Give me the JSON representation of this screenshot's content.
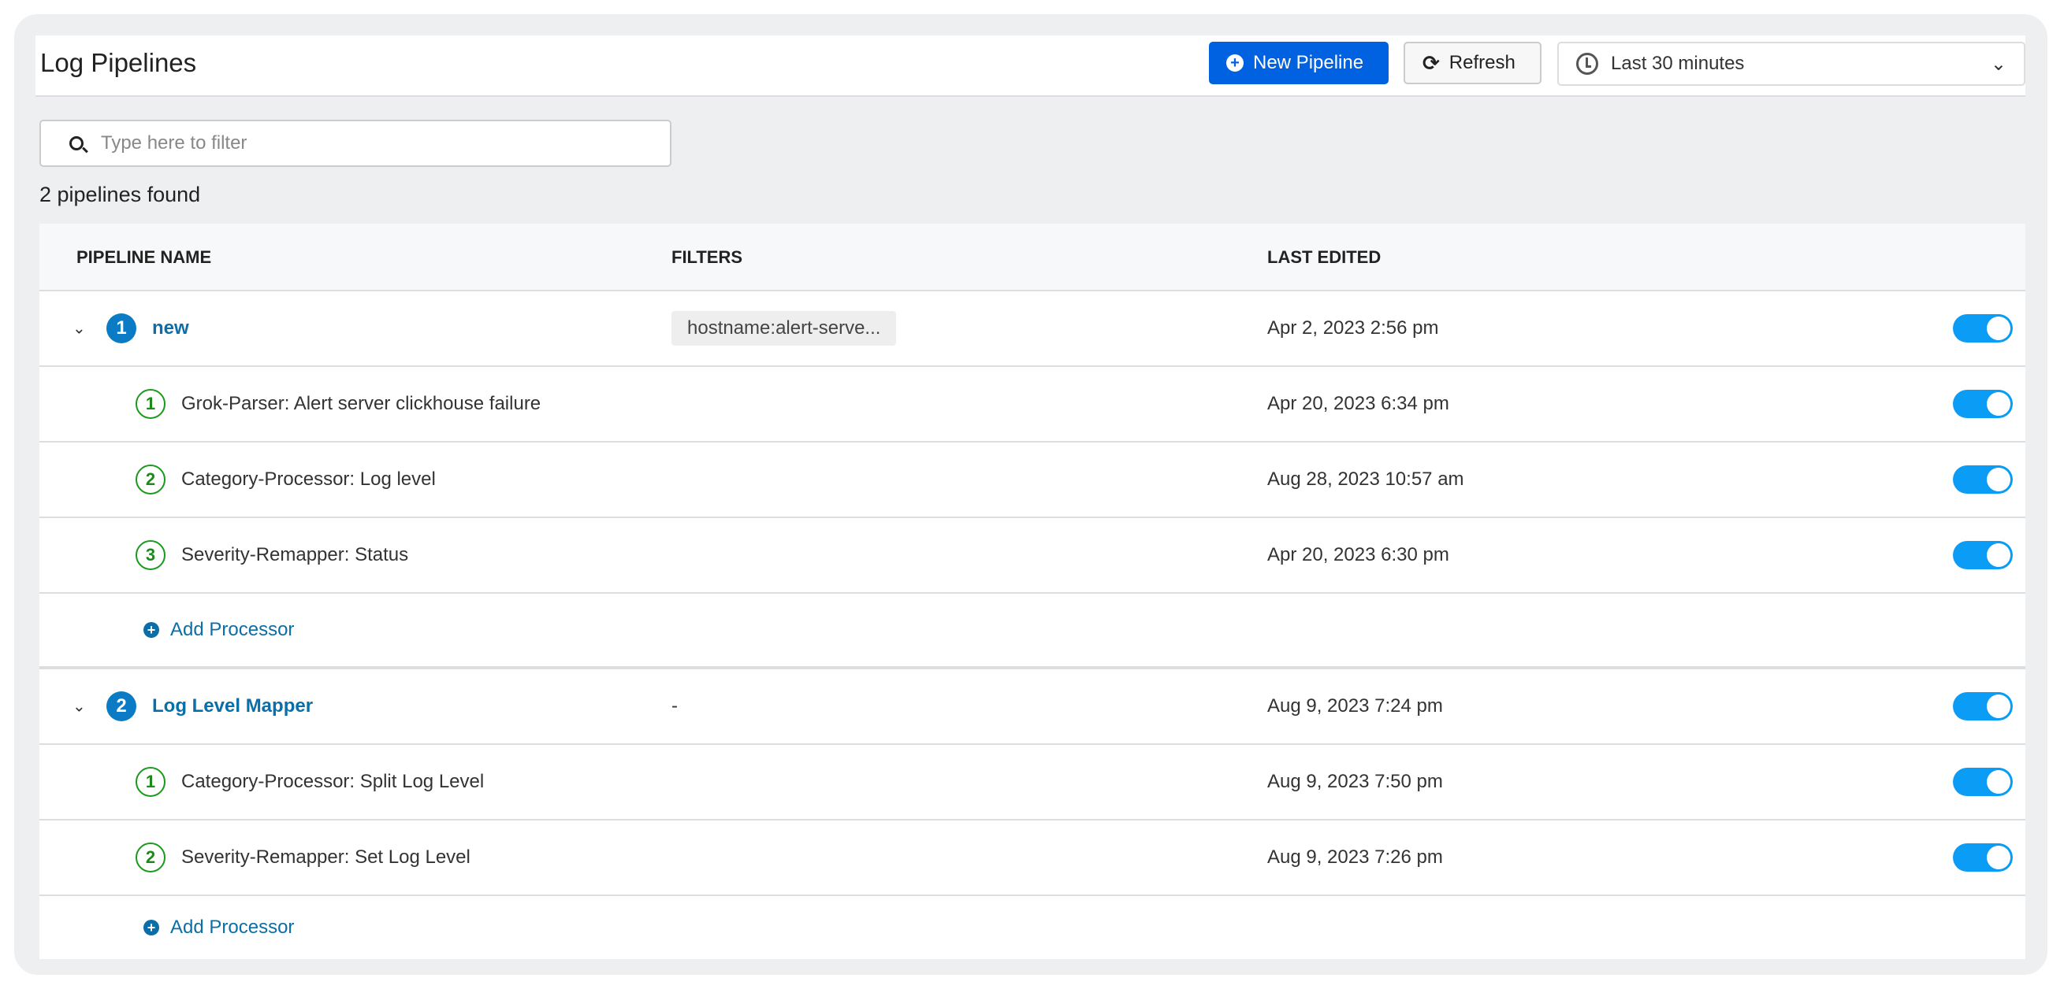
{
  "header": {
    "title": "Log Pipelines",
    "new_pipeline": "New Pipeline",
    "refresh": "Refresh",
    "time_range": "Last 30 minutes"
  },
  "search": {
    "placeholder": "Type here to filter",
    "value": ""
  },
  "count_text": "2 pipelines found",
  "columns": {
    "name": "PIPELINE NAME",
    "filters": "FILTERS",
    "last_edited": "LAST EDITED"
  },
  "pipelines": [
    {
      "index": "1",
      "name": "new",
      "filter": "hostname:alert-serve...",
      "last_edited": "Apr 2, 2023 2:56 pm",
      "enabled": true,
      "processors": [
        {
          "index": "1",
          "name": "Grok-Parser: Alert server clickhouse failure",
          "last_edited": "Apr 20, 2023 6:34 pm",
          "enabled": true
        },
        {
          "index": "2",
          "name": "Category-Processor: Log level",
          "last_edited": "Aug 28, 2023 10:57 am",
          "enabled": true
        },
        {
          "index": "3",
          "name": "Severity-Remapper: Status",
          "last_edited": "Apr 20, 2023 6:30 pm",
          "enabled": true
        }
      ],
      "add_label": "Add Processor"
    },
    {
      "index": "2",
      "name": "Log Level Mapper",
      "filter": "-",
      "last_edited": "Aug 9, 2023 7:24 pm",
      "enabled": true,
      "processors": [
        {
          "index": "1",
          "name": "Category-Processor: Split Log Level",
          "last_edited": "Aug 9, 2023 7:50 pm",
          "enabled": true
        },
        {
          "index": "2",
          "name": "Severity-Remapper: Set Log Level",
          "last_edited": "Aug 9, 2023 7:26 pm",
          "enabled": true
        }
      ],
      "add_label": "Add Processor"
    }
  ],
  "colors": {
    "primary": "#0062e0",
    "link": "#0a6ea8",
    "toggle_on": "#0b9cf5",
    "processor_badge": "#1a9a1a"
  }
}
